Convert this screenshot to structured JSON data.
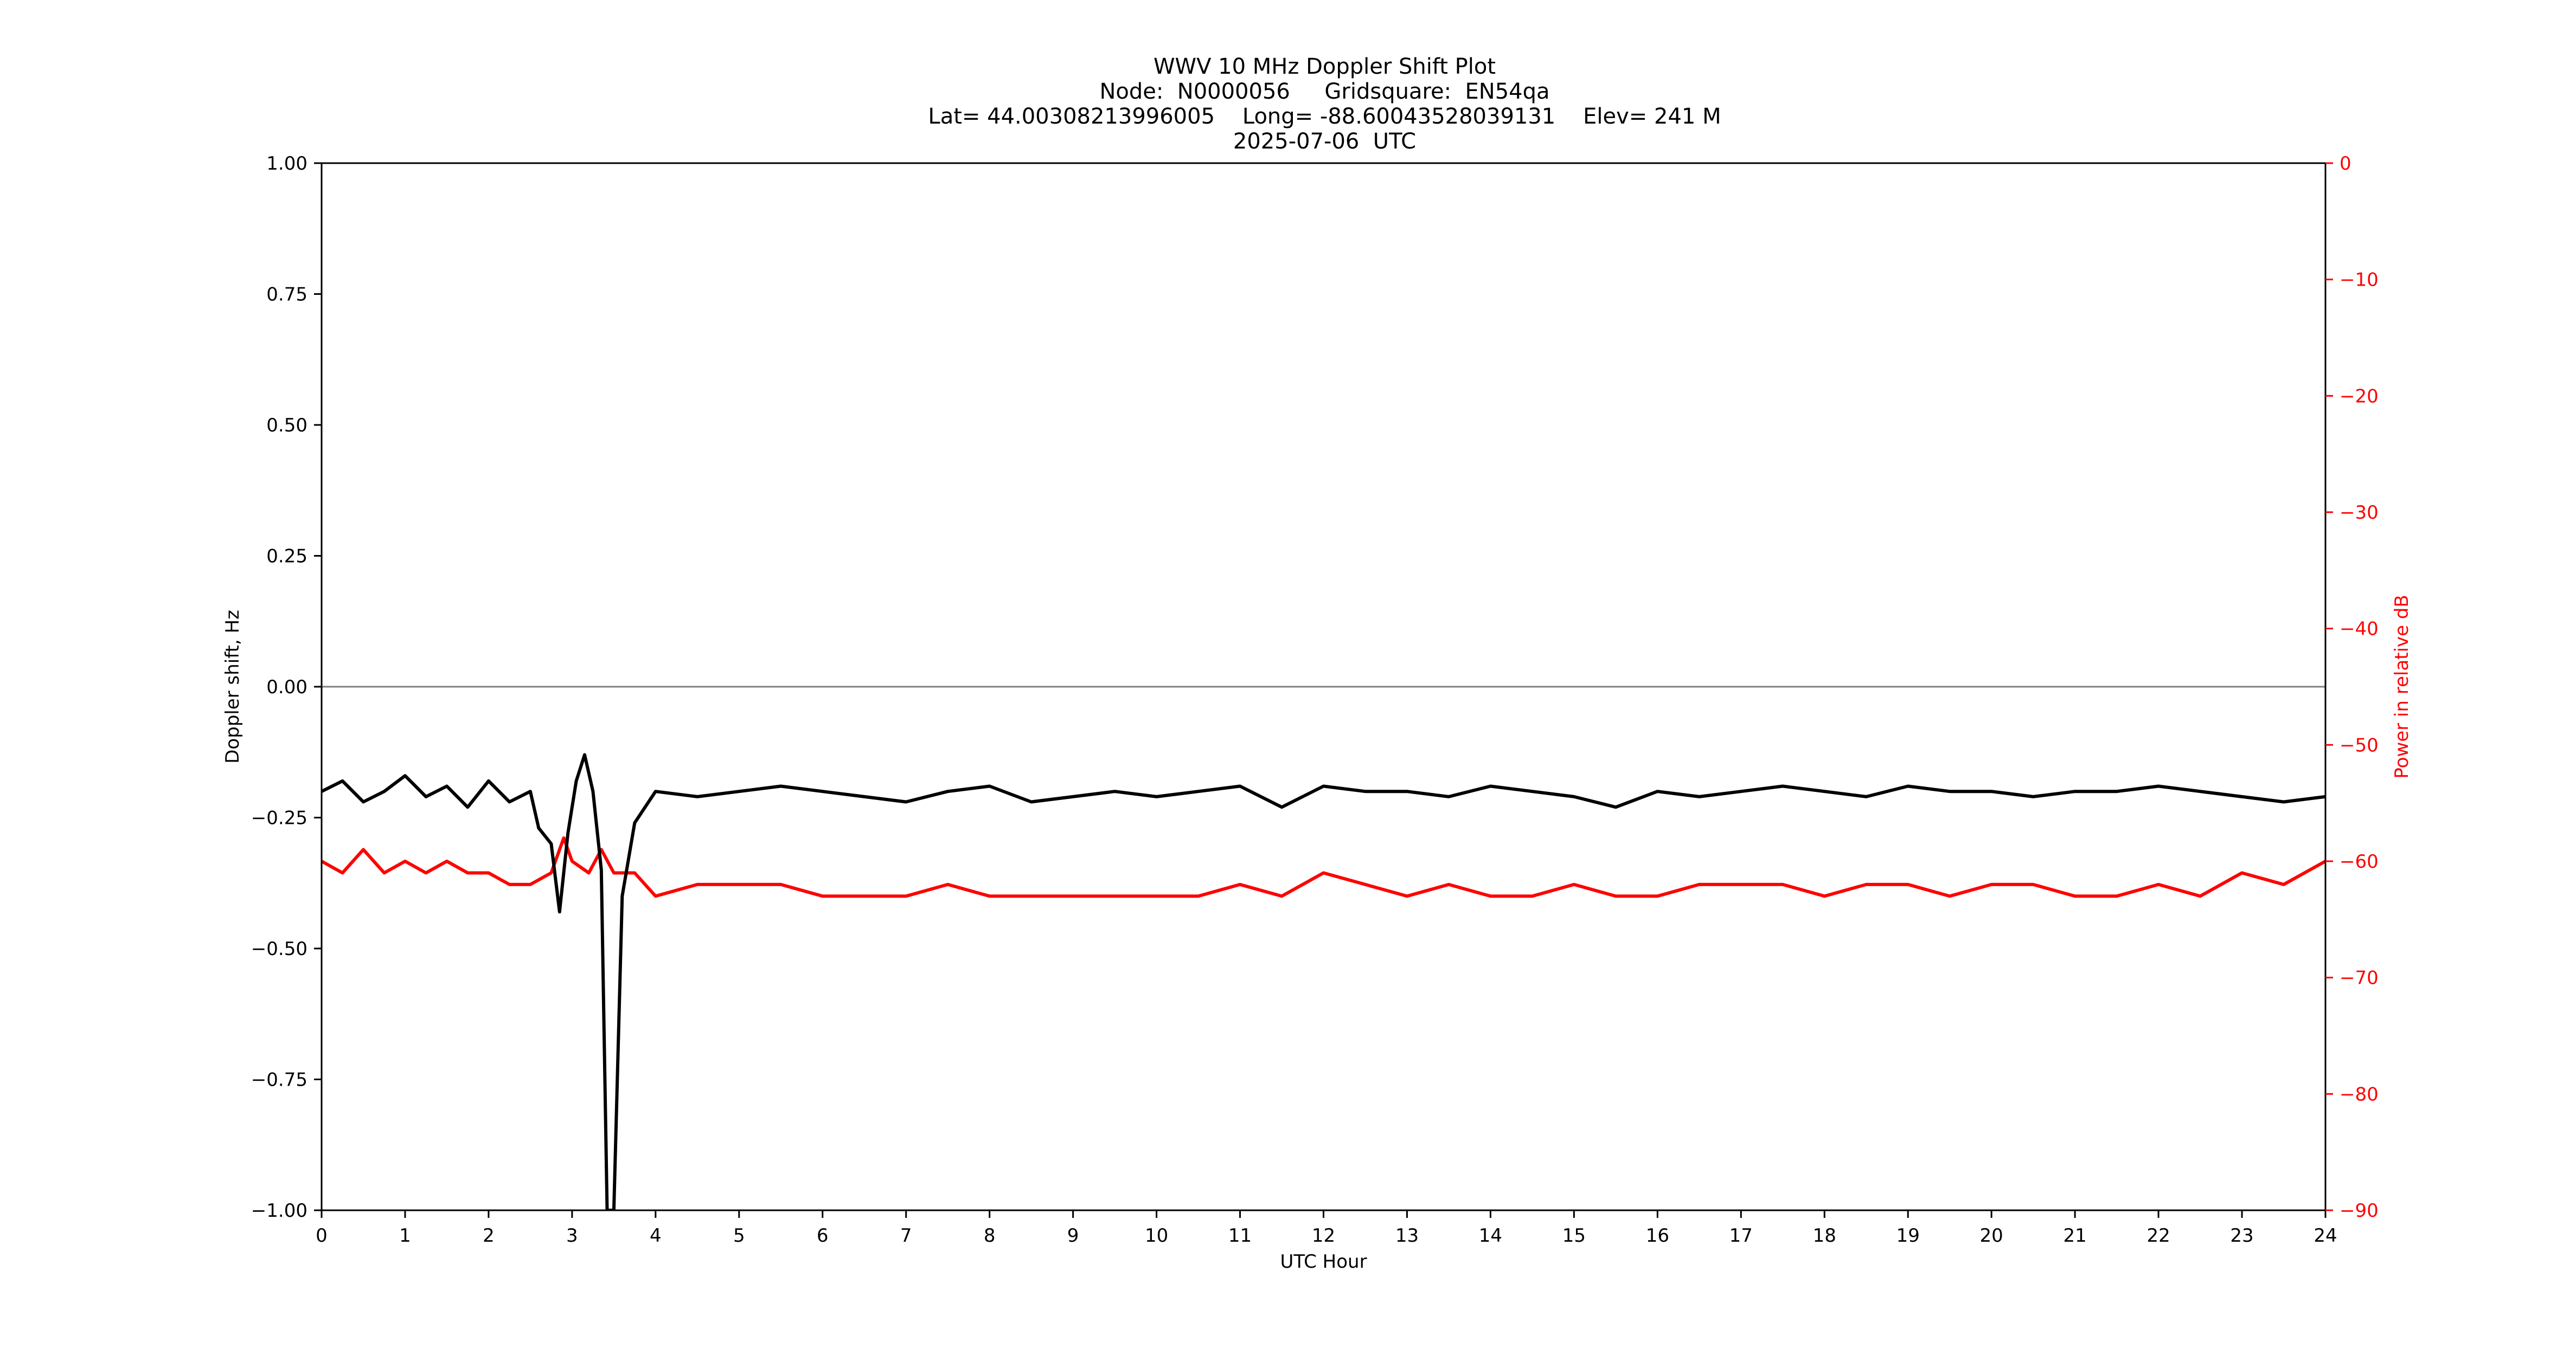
{
  "chart_data": {
    "type": "line",
    "title": "WWV 10 MHz Doppler Shift Plot",
    "subtitle_lines": [
      "Node:  N0000056     Gridsquare:  EN54qa",
      "Lat= 44.00308213996005    Long= -88.60043528039131    Elev= 241 M",
      "2025-07-06  UTC"
    ],
    "xlabel": "UTC Hour",
    "ylabel": "Doppler shift, Hz",
    "y2label": "Power in relative dB",
    "xlim": [
      0,
      24
    ],
    "ylim": [
      -1.0,
      1.0
    ],
    "y2lim": [
      -90,
      0
    ],
    "xticks": [
      "0",
      "1",
      "2",
      "3",
      "4",
      "5",
      "6",
      "7",
      "8",
      "9",
      "10",
      "11",
      "12",
      "13",
      "14",
      "15",
      "16",
      "17",
      "18",
      "19",
      "20",
      "21",
      "22",
      "23",
      "24"
    ],
    "yticks": [
      "−1.00",
      "−0.75",
      "−0.50",
      "−0.25",
      "0.00",
      "0.25",
      "0.50",
      "0.75",
      "1.00"
    ],
    "y2ticks": [
      "−90",
      "−80",
      "−70",
      "−60",
      "−50",
      "−40",
      "−30",
      "−20",
      "−10",
      "0"
    ],
    "grid": false,
    "reference_line_y": 0.0,
    "colors": {
      "doppler": "#000000",
      "power": "#ff0000",
      "zero_line": "#808080",
      "axis": "#000000"
    },
    "series": [
      {
        "axis": "left",
        "x": [
          0,
          0.25,
          0.5,
          0.75,
          1,
          1.25,
          1.5,
          1.75,
          2,
          2.25,
          2.5,
          2.6,
          2.75,
          2.85,
          2.95,
          3.05,
          3.15,
          3.25,
          3.35,
          3.42,
          3.5,
          3.6,
          3.75,
          4,
          4.5,
          5,
          5.5,
          6,
          6.5,
          7,
          7.5,
          8,
          8.5,
          9,
          9.5,
          10,
          10.5,
          11,
          11.5,
          12,
          12.5,
          13,
          13.5,
          14,
          14.5,
          15,
          15.5,
          16,
          16.5,
          17,
          17.5,
          18,
          18.5,
          19,
          19.5,
          20,
          20.5,
          21,
          21.5,
          22,
          22.5,
          23,
          23.5,
          24
        ],
        "values": [
          -0.2,
          -0.18,
          -0.22,
          -0.2,
          -0.17,
          -0.21,
          -0.19,
          -0.23,
          -0.18,
          -0.22,
          -0.2,
          -0.27,
          -0.3,
          -0.43,
          -0.28,
          -0.18,
          -0.13,
          -0.2,
          -0.35,
          -1.0,
          -1.0,
          -0.4,
          -0.26,
          -0.2,
          -0.21,
          -0.2,
          -0.19,
          -0.2,
          -0.21,
          -0.22,
          -0.2,
          -0.19,
          -0.22,
          -0.21,
          -0.2,
          -0.21,
          -0.2,
          -0.19,
          -0.23,
          -0.19,
          -0.2,
          -0.2,
          -0.21,
          -0.19,
          -0.2,
          -0.21,
          -0.23,
          -0.2,
          -0.21,
          -0.2,
          -0.19,
          -0.2,
          -0.21,
          -0.19,
          -0.2,
          -0.2,
          -0.21,
          -0.2,
          -0.2,
          -0.19,
          -0.2,
          -0.21,
          -0.22,
          -0.21
        ]
      },
      {
        "axis": "right",
        "x": [
          0,
          0.25,
          0.5,
          0.75,
          1,
          1.25,
          1.5,
          1.75,
          2,
          2.25,
          2.5,
          2.75,
          2.9,
          3.0,
          3.2,
          3.35,
          3.5,
          3.75,
          4,
          4.5,
          5,
          5.5,
          6,
          6.5,
          7,
          7.5,
          8,
          8.5,
          9,
          9.5,
          10,
          10.5,
          11,
          11.5,
          12,
          12.5,
          13,
          13.5,
          14,
          14.5,
          15,
          15.5,
          16,
          16.5,
          17,
          17.5,
          18,
          18.5,
          19,
          19.5,
          20,
          20.5,
          21,
          21.5,
          22,
          22.5,
          23,
          23.5,
          24
        ],
        "values": [
          -60,
          -61,
          -59,
          -61,
          -60,
          -61,
          -60,
          -61,
          -61,
          -62,
          -62,
          -61,
          -58,
          -60,
          -61,
          -59,
          -61,
          -61,
          -63,
          -62,
          -62,
          -62,
          -63,
          -63,
          -63,
          -62,
          -63,
          -63,
          -63,
          -63,
          -63,
          -63,
          -62,
          -63,
          -61,
          -62,
          -63,
          -62,
          -63,
          -63,
          -62,
          -63,
          -63,
          -62,
          -62,
          -62,
          -63,
          -62,
          -62,
          -63,
          -62,
          -62,
          -63,
          -63,
          -62,
          -63,
          -61,
          -62,
          -60
        ]
      }
    ]
  }
}
